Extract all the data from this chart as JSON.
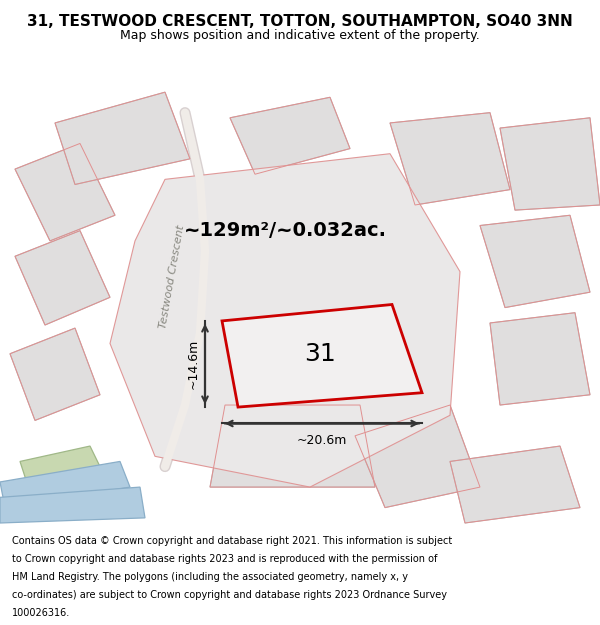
{
  "title": "31, TESTWOOD CRESCENT, TOTTON, SOUTHAMPTON, SO40 3NN",
  "subtitle": "Map shows position and indicative extent of the property.",
  "area_text": "~129m²/~0.032ac.",
  "number_label": "31",
  "dim_width": "~20.6m",
  "dim_height": "~14.6m",
  "street_label": "Testwood Crescent",
  "footer_lines": [
    "Contains OS data © Crown copyright and database right 2021. This information is subject",
    "to Crown copyright and database rights 2023 and is reproduced with the permission of",
    "HM Land Registry. The polygons (including the associated geometry, namely x, y",
    "co-ordinates) are subject to Crown copyright and database rights 2023 Ordnance Survey",
    "100026316."
  ],
  "map_bg": "#f2f0f0",
  "grey_fill": "#e0dede",
  "grey_edge": "#b8b8b8",
  "pink_edge": "#e09090",
  "red_border": "#cc0000",
  "green_fill": "#c8d8b0",
  "green_edge": "#a0b888",
  "blue_fill": "#b0cce0",
  "blue_edge": "#8aaec8",
  "road_outer": "#d8d0d0",
  "road_inner": "#f0ece8",
  "central_fill": "#eae8e8",
  "central_edge": "#e09898",
  "dim_color": "#333333",
  "street_color": "#888880",
  "title_fontsize": 11,
  "subtitle_fontsize": 9,
  "footer_fontsize": 7.0,
  "area_fontsize": 14,
  "number_fontsize": 18
}
